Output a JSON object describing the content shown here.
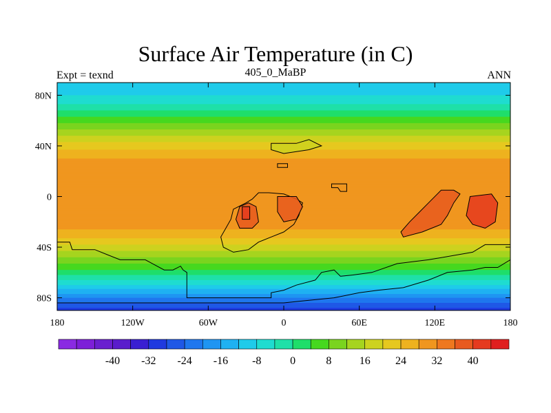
{
  "title": "Surface Air Temperature (in C)",
  "left_string": "Expt = texnd",
  "center_string": "405_0_MaBP",
  "right_string": "ANN",
  "map": {
    "lon_range": [
      -180,
      180
    ],
    "lat_range": [
      -90,
      90
    ],
    "lon_ticks": [
      {
        "value": -180,
        "label": "180"
      },
      {
        "value": -120,
        "label": "120W"
      },
      {
        "value": -60,
        "label": "60W"
      },
      {
        "value": 0,
        "label": "0"
      },
      {
        "value": 60,
        "label": "60E"
      },
      {
        "value": 120,
        "label": "120E"
      },
      {
        "value": 180,
        "label": "180"
      }
    ],
    "lat_ticks": [
      {
        "value": 80,
        "label": "80N"
      },
      {
        "value": 40,
        "label": "40N"
      },
      {
        "value": 0,
        "label": "0"
      },
      {
        "value": -40,
        "label": "40S"
      },
      {
        "value": -80,
        "label": "80S"
      }
    ],
    "zonal_profile_C": [
      {
        "lat": 90,
        "t": -12
      },
      {
        "lat": 80,
        "t": -8
      },
      {
        "lat": 70,
        "t": -2
      },
      {
        "lat": 60,
        "t": 6
      },
      {
        "lat": 50,
        "t": 14
      },
      {
        "lat": 40,
        "t": 22
      },
      {
        "lat": 30,
        "t": 28
      },
      {
        "lat": 20,
        "t": 31
      },
      {
        "lat": 0,
        "t": 32
      },
      {
        "lat": -20,
        "t": 31
      },
      {
        "lat": -30,
        "t": 26
      },
      {
        "lat": -40,
        "t": 18
      },
      {
        "lat": -50,
        "t": 10
      },
      {
        "lat": -60,
        "t": 2
      },
      {
        "lat": -70,
        "t": -8
      },
      {
        "lat": -80,
        "t": -20
      },
      {
        "lat": -90,
        "t": -30
      }
    ]
  },
  "colorbar": {
    "colors": [
      "#8a2be2",
      "#7d1fd8",
      "#6a1fcf",
      "#5a1ccc",
      "#3a1fd2",
      "#1f3adf",
      "#1f58e6",
      "#1f77ee",
      "#1f95f2",
      "#1fb1f2",
      "#1fcbea",
      "#1fdcd0",
      "#1fe0a8",
      "#1fde6a",
      "#46d81f",
      "#7ad41f",
      "#a6d41f",
      "#cdd21f",
      "#e6c81f",
      "#eeb21f",
      "#f0961f",
      "#ee781f",
      "#e85a1f",
      "#e53a1f",
      "#e01f1f"
    ],
    "levels": [
      -48,
      -44,
      -40,
      -36,
      -32,
      -28,
      -24,
      -20,
      -16,
      -12,
      -8,
      -4,
      0,
      4,
      8,
      12,
      16,
      20,
      24,
      28,
      32,
      36,
      40,
      44
    ],
    "labels": [
      "-40",
      "-32",
      "-24",
      "-16",
      "-8",
      "0",
      "8",
      "16",
      "24",
      "32",
      "40"
    ]
  },
  "continents": [
    {
      "name": "northern-block",
      "points": [
        [
          -10,
          42
        ],
        [
          10,
          42
        ],
        [
          20,
          45
        ],
        [
          30,
          40
        ],
        [
          20,
          37
        ],
        [
          0,
          34
        ],
        [
          -10,
          37
        ]
      ]
    },
    {
      "name": "northern-islet",
      "points": [
        [
          -5,
          26
        ],
        [
          3,
          26
        ],
        [
          3,
          23
        ],
        [
          -5,
          23
        ]
      ]
    },
    {
      "name": "northern-islet-east",
      "points": [
        [
          38,
          10
        ],
        [
          50,
          10
        ],
        [
          50,
          4
        ],
        [
          45,
          4
        ],
        [
          43,
          7
        ],
        [
          38,
          7
        ]
      ]
    },
    {
      "name": "gondwana-main",
      "points": [
        [
          -180,
          -36
        ],
        [
          -170,
          -36
        ],
        [
          -168,
          -42
        ],
        [
          -150,
          -42
        ],
        [
          -140,
          -46
        ],
        [
          -130,
          -50
        ],
        [
          -110,
          -50
        ],
        [
          -95,
          -58
        ],
        [
          -88,
          -58
        ],
        [
          -82,
          -55
        ],
        [
          -80,
          -58
        ],
        [
          -77,
          -60
        ],
        [
          -77,
          -80
        ],
        [
          -10,
          -80
        ],
        [
          -10,
          -76
        ],
        [
          0,
          -74
        ],
        [
          10,
          -70
        ],
        [
          25,
          -66
        ],
        [
          30,
          -60
        ],
        [
          40,
          -58
        ],
        [
          45,
          -63
        ],
        [
          55,
          -62
        ],
        [
          70,
          -60
        ],
        [
          90,
          -53
        ],
        [
          115,
          -50
        ],
        [
          150,
          -44
        ],
        [
          160,
          -38
        ],
        [
          170,
          -38
        ],
        [
          180,
          -38
        ],
        [
          180,
          -50
        ],
        [
          170,
          -56
        ],
        [
          160,
          -56
        ],
        [
          150,
          -58
        ],
        [
          130,
          -60
        ],
        [
          115,
          -66
        ],
        [
          95,
          -72
        ],
        [
          75,
          -74
        ],
        [
          60,
          -76
        ],
        [
          40,
          -80
        ],
        [
          20,
          -82
        ],
        [
          0,
          -84
        ],
        [
          -60,
          -84
        ],
        [
          -100,
          -84
        ],
        [
          -140,
          -84
        ],
        [
          -180,
          -84
        ]
      ]
    },
    {
      "name": "west-africa-block",
      "points": [
        [
          -40,
          -10
        ],
        [
          -30,
          -5
        ],
        [
          -25,
          -2
        ],
        [
          -20,
          3
        ],
        [
          -12,
          3
        ],
        [
          0,
          2
        ],
        [
          10,
          -2
        ],
        [
          15,
          -5
        ],
        [
          12,
          -15
        ],
        [
          8,
          -22
        ],
        [
          0,
          -28
        ],
        [
          -10,
          -32
        ],
        [
          -20,
          -36
        ],
        [
          -28,
          -42
        ],
        [
          -40,
          -44
        ],
        [
          -48,
          -40
        ],
        [
          -50,
          -32
        ],
        [
          -46,
          -25
        ],
        [
          -42,
          -18
        ]
      ]
    },
    {
      "name": "hot-region-a",
      "points": [
        [
          -35,
          -8
        ],
        [
          -28,
          -5
        ],
        [
          -22,
          -8
        ],
        [
          -20,
          -20
        ],
        [
          -25,
          -25
        ],
        [
          -35,
          -25
        ],
        [
          -38,
          -18
        ]
      ]
    },
    {
      "name": "hot-region-b",
      "points": [
        [
          -5,
          0
        ],
        [
          10,
          0
        ],
        [
          15,
          -8
        ],
        [
          10,
          -18
        ],
        [
          0,
          -20
        ],
        [
          -5,
          -12
        ]
      ]
    },
    {
      "name": "hot-island",
      "points": [
        [
          -33,
          -8
        ],
        [
          -27,
          -8
        ],
        [
          -27,
          -18
        ],
        [
          -33,
          -18
        ]
      ]
    },
    {
      "name": "east-gondwana",
      "points": [
        [
          125,
          5
        ],
        [
          135,
          5
        ],
        [
          140,
          2
        ],
        [
          135,
          -5
        ],
        [
          130,
          -15
        ],
        [
          125,
          -22
        ],
        [
          110,
          -28
        ],
        [
          95,
          -32
        ],
        [
          93,
          -28
        ],
        [
          100,
          -20
        ],
        [
          108,
          -12
        ],
        [
          115,
          -5
        ]
      ]
    },
    {
      "name": "hot-east-b",
      "points": [
        [
          148,
          0
        ],
        [
          165,
          2
        ],
        [
          170,
          -5
        ],
        [
          168,
          -20
        ],
        [
          160,
          -25
        ],
        [
          150,
          -22
        ],
        [
          145,
          -15
        ]
      ]
    }
  ]
}
